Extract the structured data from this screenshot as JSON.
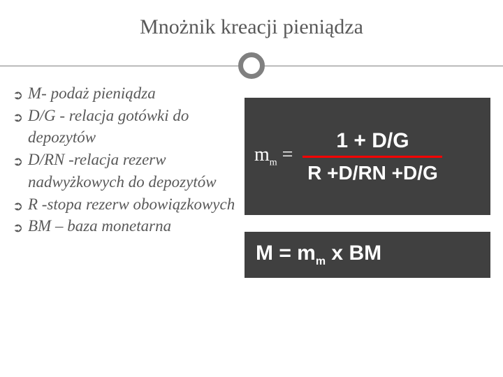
{
  "title": "Mnożnik kreacji pieniądza",
  "bullets": [
    "M- podaż pieniądza",
    "D/G - relacja gotówki do depozytów",
    "D/RN -relacja rezerw nadwyżkowych do depozytów",
    " R -stopa rezerw obowiązkowych",
    "BM – baza monetarna"
  ],
  "formula": {
    "lhs_base": "m",
    "lhs_sub": "m",
    "lhs_eq": " =",
    "numerator": "1 + D/G",
    "denominator": "R +D/RN +D/G"
  },
  "equation": {
    "pre": "M = m",
    "sub": "m",
    "post": " x BM"
  },
  "colors": {
    "text_gray": "#595959",
    "rule_gray": "#808080",
    "box_bg": "#404040",
    "frac_line": "#ff0000",
    "white": "#ffffff"
  }
}
